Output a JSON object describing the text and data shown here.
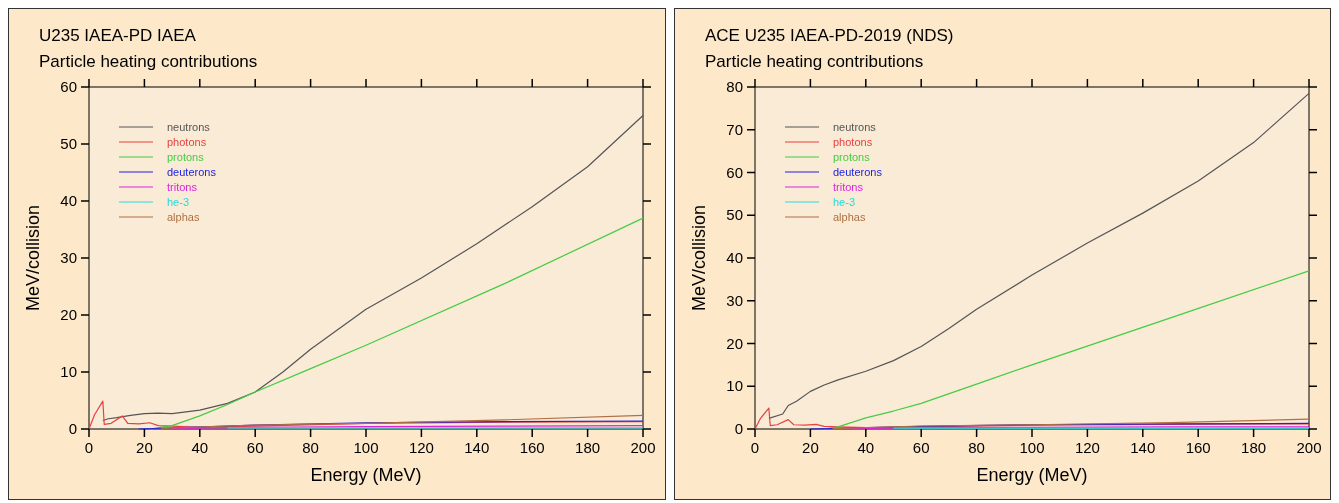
{
  "chart_data": [
    {
      "type": "line",
      "title": "U235 IAEA-PD IAEA",
      "subtitle": "Particle heating contributions",
      "xlabel": "Energy (MeV)",
      "ylabel": "MeV/collision",
      "xlim": [
        0,
        200
      ],
      "ylim": [
        0,
        60
      ],
      "xticks": [
        0,
        20,
        40,
        60,
        80,
        100,
        120,
        140,
        160,
        180,
        200
      ],
      "yticks": [
        0,
        10,
        20,
        30,
        40,
        50,
        60
      ],
      "legend": "top left",
      "grid": false,
      "series": [
        {
          "name": "neutrons",
          "color": "#555555",
          "x": [
            5,
            7,
            10,
            15,
            20,
            25,
            30,
            40,
            50,
            60,
            70,
            80,
            90,
            100,
            120,
            140,
            160,
            180,
            200
          ],
          "values": [
            1.5,
            1.8,
            2,
            2.4,
            2.7,
            2.8,
            2.7,
            3.3,
            4.5,
            6.5,
            10,
            14,
            17.5,
            21,
            26.5,
            32.5,
            39,
            46,
            55
          ]
        },
        {
          "name": "photons",
          "color": "#e84040",
          "x": [
            0,
            2,
            5,
            5.5,
            8,
            12,
            14,
            18,
            22,
            25,
            30,
            40,
            60,
            100,
            150,
            200
          ],
          "values": [
            0,
            2.5,
            4.9,
            0.8,
            1,
            2.3,
            1,
            0.9,
            1.1,
            0.6,
            0.5,
            0.3,
            0.5,
            1,
            1.2,
            1.3
          ]
        },
        {
          "name": "protons",
          "color": "#44cc44",
          "x": [
            22,
            30,
            40,
            50,
            60,
            80,
            100,
            150,
            200
          ],
          "values": [
            0,
            0.6,
            2.3,
            4.3,
            6.5,
            10.6,
            14.7,
            25.5,
            37
          ]
        },
        {
          "name": "deuterons",
          "color": "#2222dd",
          "x": [
            18,
            60,
            100,
            150,
            200
          ],
          "values": [
            0,
            0.7,
            1.1,
            1.3,
            1.4
          ]
        },
        {
          "name": "tritons",
          "color": "#dd22dd",
          "x": [
            30,
            60,
            100,
            150,
            200
          ],
          "values": [
            0.1,
            0.3,
            0.4,
            0.5,
            0.6
          ]
        },
        {
          "name": "he-3",
          "color": "#22dddd",
          "x": [
            50,
            200
          ],
          "values": [
            0.2,
            0.2
          ]
        },
        {
          "name": "alphas",
          "color": "#b07040",
          "x": [
            26,
            60,
            100,
            150,
            200
          ],
          "values": [
            0.1,
            0.7,
            1,
            1.6,
            2.4
          ]
        }
      ]
    },
    {
      "type": "line",
      "title": "ACE U235 IAEA-PD-2019 (NDS)",
      "subtitle": "Particle heating contributions",
      "xlabel": "Energy (MeV)",
      "ylabel": "MeV/collision",
      "xlim": [
        0,
        200
      ],
      "ylim": [
        0,
        80
      ],
      "xticks": [
        0,
        20,
        40,
        60,
        80,
        100,
        120,
        140,
        160,
        180,
        200
      ],
      "yticks": [
        0,
        10,
        20,
        30,
        40,
        50,
        60,
        70,
        80
      ],
      "legend": "top left",
      "grid": false,
      "series": [
        {
          "name": "neutrons",
          "color": "#555555",
          "x": [
            5,
            10,
            12,
            15,
            20,
            25,
            30,
            40,
            50,
            60,
            70,
            80,
            100,
            120,
            140,
            160,
            180,
            200
          ],
          "values": [
            2.5,
            3.5,
            5.5,
            6.5,
            8.8,
            10.3,
            11.5,
            13.5,
            16,
            19.3,
            23.5,
            28,
            36,
            43.5,
            50.5,
            58,
            67,
            78.5
          ]
        },
        {
          "name": "photons",
          "color": "#e84040",
          "x": [
            0,
            2,
            5,
            5.5,
            8,
            12,
            14,
            18,
            22,
            25,
            30,
            40,
            60,
            100,
            150,
            200
          ],
          "values": [
            0,
            2.5,
            4.9,
            0.8,
            1,
            2.2,
            1,
            0.9,
            1.1,
            0.6,
            0.5,
            0.3,
            0.5,
            0.9,
            1.1,
            1.2
          ]
        },
        {
          "name": "protons",
          "color": "#44cc44",
          "x": [
            25,
            30,
            40,
            50,
            60,
            80,
            100,
            150,
            200
          ],
          "values": [
            0,
            0.5,
            2.6,
            4.2,
            6,
            10.5,
            15,
            26,
            37
          ]
        },
        {
          "name": "deuterons",
          "color": "#2222dd",
          "x": [
            20,
            60,
            100,
            150,
            200
          ],
          "values": [
            0,
            0.6,
            1,
            1.2,
            1.3
          ]
        },
        {
          "name": "tritons",
          "color": "#dd22dd",
          "x": [
            32,
            60,
            100,
            150,
            200
          ],
          "values": [
            0.1,
            0.3,
            0.4,
            0.5,
            0.5
          ]
        },
        {
          "name": "he-3",
          "color": "#22dddd",
          "x": [
            50,
            200
          ],
          "values": [
            0.2,
            0.2
          ]
        },
        {
          "name": "alphas",
          "color": "#b07040",
          "x": [
            28,
            60,
            100,
            150,
            200
          ],
          "values": [
            0.1,
            0.7,
            1,
            1.5,
            2.3
          ]
        }
      ]
    }
  ]
}
